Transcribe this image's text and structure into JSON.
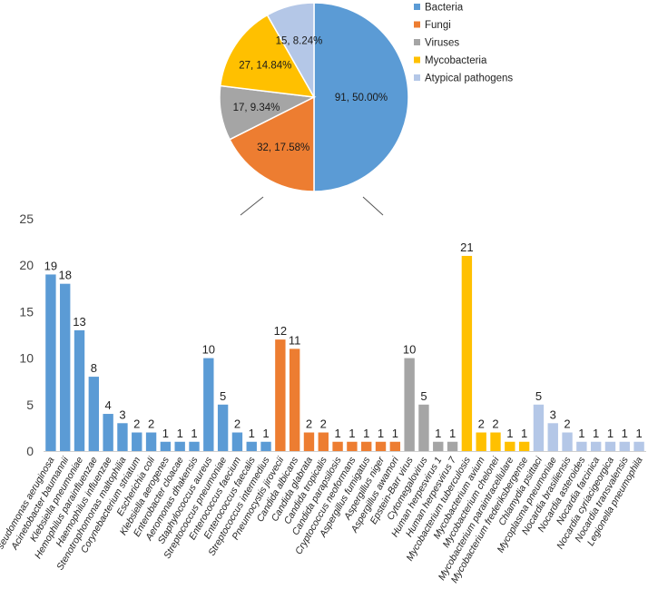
{
  "chart_data": [
    {
      "type": "pie",
      "title": "",
      "slices": [
        {
          "name": "Bacteria",
          "value": 91,
          "percent": "50.00%",
          "label": "91, 50.00%",
          "color": "#5B9BD5"
        },
        {
          "name": "Fungi",
          "value": 32,
          "percent": "17.58%",
          "label": "32, 17.58%",
          "color": "#ED7D31"
        },
        {
          "name": "Viruses",
          "value": 17,
          "percent": "9.34%",
          "label": "17, 9.34%",
          "color": "#A5A5A5"
        },
        {
          "name": "Mycobacteria",
          "value": 27,
          "percent": "14.84%",
          "label": "27, 14.84%",
          "color": "#FFC000"
        },
        {
          "name": "Atypical pathogens",
          "value": 15,
          "percent": "8.24%",
          "label": "15, 8.24%",
          "color": "#B4C7E7"
        }
      ],
      "legend_position": "right"
    },
    {
      "type": "bar",
      "title": "",
      "xlabel": "",
      "ylabel": "",
      "ylim": [
        0,
        25
      ],
      "yticks": [
        "0",
        "5",
        "10",
        "15",
        "20",
        "25"
      ],
      "grid": false,
      "categories": [
        "Pseudomonas aeruginosa",
        "Acinetobacter baumannii",
        "Klebsiella pneumoniae",
        "Hemophilus parainfluenzae",
        "Haemophilus influenzae",
        "Stenotrophomonas maltophilia",
        "Corynebacterium striatum",
        "Escherichia coli",
        "Klebsiella aerogenes",
        "Enterobacter cloacae",
        "Aeromonas dhakensis",
        "Staphylococcus aureus",
        "Streptococcus pneumoniae",
        "Enterococcus faecium",
        "Enterococcus faecalis",
        "Streptococcus intermedius",
        "Pneumocystis jirovecii",
        "Candida albicans",
        "Candida glabrata",
        "Candida tropicalis",
        "Candida parapsilosis",
        "Cryptococcus neoformans",
        "Aspergillus fumigatus",
        "Aspergillus niger",
        "Aspergillus awamori",
        "Epstein-Barr virus",
        "Cytomegalovirus",
        "Human herpesvirus 1",
        "Human herpesvirus 7",
        "Mycobacterium tuberculosis",
        "Mycobacterium avium",
        "Mycobacterium chelonei",
        "Mycobacterium paraintracellulare",
        "Mycobacterium frederiksbergense",
        "Chlamydia psittaci",
        "Mycoplasma pneumoniae",
        "Nocardia brasiliensis",
        "Nocardia asteroides",
        "Nocardia farcinica",
        "Nocardia cyriacigeorgica",
        "Nocardia transvalensis",
        "Legionella pneumophila"
      ],
      "values": [
        19,
        18,
        13,
        8,
        4,
        3,
        2,
        2,
        1,
        1,
        1,
        10,
        5,
        2,
        1,
        1,
        12,
        11,
        2,
        2,
        1,
        1,
        1,
        1,
        1,
        10,
        5,
        1,
        1,
        21,
        2,
        2,
        1,
        1,
        5,
        3,
        2,
        1,
        1,
        1,
        1,
        1
      ],
      "groups": [
        "Bacteria",
        "Bacteria",
        "Bacteria",
        "Bacteria",
        "Bacteria",
        "Bacteria",
        "Bacteria",
        "Bacteria",
        "Bacteria",
        "Bacteria",
        "Bacteria",
        "Bacteria",
        "Bacteria",
        "Bacteria",
        "Bacteria",
        "Bacteria",
        "Fungi",
        "Fungi",
        "Fungi",
        "Fungi",
        "Fungi",
        "Fungi",
        "Fungi",
        "Fungi",
        "Fungi",
        "Viruses",
        "Viruses",
        "Viruses",
        "Viruses",
        "Mycobacteria",
        "Mycobacteria",
        "Mycobacteria",
        "Mycobacteria",
        "Mycobacteria",
        "Atypical pathogens",
        "Atypical pathogens",
        "Atypical pathogens",
        "Atypical pathogens",
        "Atypical pathogens",
        "Atypical pathogens",
        "Atypical pathogens",
        "Atypical pathogens"
      ],
      "group_colors": {
        "Bacteria": "#5B9BD5",
        "Fungi": "#ED7D31",
        "Viruses": "#A5A5A5",
        "Mycobacteria": "#FFC000",
        "Atypical pathogens": "#B4C7E7"
      }
    }
  ]
}
